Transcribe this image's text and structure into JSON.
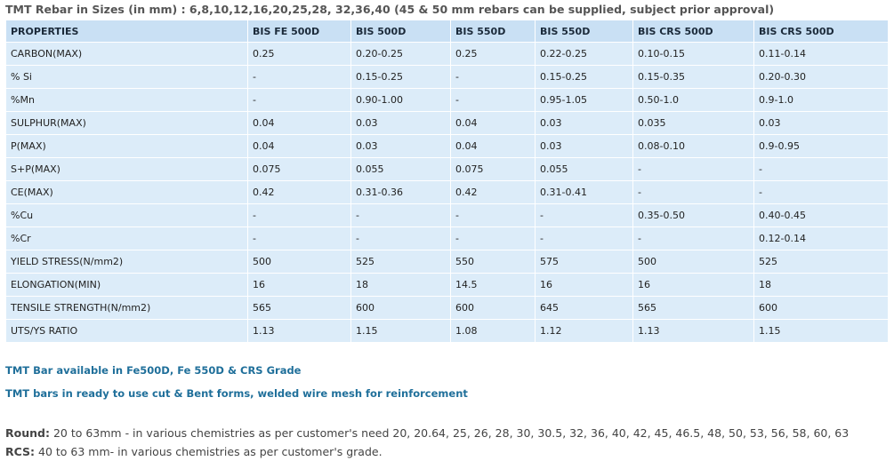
{
  "title": "TMT Rebar in Sizes (in mm) : 6,8,10,12,16,20,25,28, 32,36,40 (45 & 50 mm rebars can be supplied, subject prior approval)",
  "table": {
    "header": [
      "PROPERTIES",
      "BIS FE 500D",
      "BIS 500D",
      "BIS 550D",
      "BIS 550D",
      "BIS CRS 500D",
      "BIS CRS 500D"
    ],
    "rows": [
      [
        "CARBON(MAX)",
        "0.25",
        "0.20-0.25",
        "0.25",
        "0.22-0.25",
        "0.10-0.15",
        "0.11-0.14"
      ],
      [
        "% Si",
        "-",
        "0.15-0.25",
        "-",
        "0.15-0.25",
        "0.15-0.35",
        "0.20-0.30"
      ],
      [
        "%Mn",
        "-",
        "0.90-1.00",
        "-",
        "0.95-1.05",
        "0.50-1.0",
        "0.9-1.0"
      ],
      [
        "SULPHUR(MAX)",
        "0.04",
        "0.03",
        "0.04",
        "0.03",
        "0.035",
        "0.03"
      ],
      [
        "P(MAX)",
        "0.04",
        "0.03",
        "0.04",
        "0.03",
        "0.08-0.10",
        "0.9-0.95"
      ],
      [
        "S+P(MAX)",
        "0.075",
        "0.055",
        "0.075",
        "0.055",
        "-",
        "-"
      ],
      [
        "CE(MAX)",
        "0.42",
        "0.31-0.36",
        "0.42",
        "0.31-0.41",
        "-",
        "-"
      ],
      [
        "%Cu",
        "-",
        "-",
        "-",
        "-",
        "0.35-0.50",
        "0.40-0.45"
      ],
      [
        "%Cr",
        "-",
        "-",
        "-",
        "-",
        "-",
        "0.12-0.14"
      ],
      [
        "YIELD STRESS(N/mm2)",
        "500",
        "525",
        "550",
        "575",
        "500",
        "525"
      ],
      [
        "ELONGATION(MIN)",
        "16",
        "18",
        "14.5",
        "16",
        "16",
        "18"
      ],
      [
        "TENSILE STRENGTH(N/mm2)",
        "565",
        "600",
        "600",
        "645",
        "565",
        "600"
      ],
      [
        "UTS/YS RATIO",
        "1.13",
        "1.15",
        "1.08",
        "1.12",
        "1.13",
        "1.15"
      ]
    ]
  },
  "notes": [
    "TMT Bar available in Fe500D, Fe 550D & CRS Grade",
    "TMT bars in ready to use cut & Bent forms, welded wire mesh for reinforcement"
  ],
  "details": [
    {
      "label": "Round:",
      "text": " 20 to 63mm - in various chemistries as per customer's need 20, 20.64, 25, 26, 28, 30, 30.5, 32, 36, 40, 42, 45, 46.5, 48, 50, 53, 56, 58, 60, 63"
    },
    {
      "label": "RCS:",
      "text": " 40 to 63 mm- in various chemistries as per customer's grade."
    }
  ]
}
